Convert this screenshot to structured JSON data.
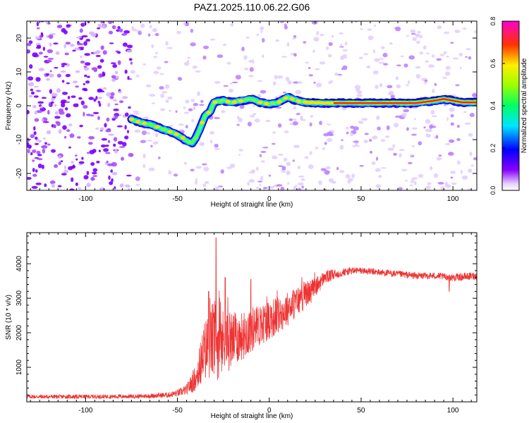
{
  "figure": {
    "title": "PAZ1.2025.110.06.22.G06"
  },
  "chart_data": [
    {
      "type": "heatmap",
      "title": "PAZ1.2025.110.06.22.G06",
      "xlabel": "Height of straight line (km)",
      "ylabel": "Frequency (Hz)",
      "xlim": [
        -132,
        113
      ],
      "ylim": [
        -25,
        25
      ],
      "xticks": [
        -100,
        -50,
        0,
        50,
        100
      ],
      "yticks": [
        -20,
        -10,
        0,
        10,
        20
      ],
      "colorbar": {
        "label": "Normalized spectral amplitude",
        "range": [
          0.0,
          0.8
        ],
        "ticks": [
          0.0,
          0.2,
          0.4,
          0.6,
          0.8
        ],
        "colormap": "rainbow (white-violet-blue-cyan-green-yellow-red-magenta)"
      },
      "ridge": {
        "description": "dominant frequency trace",
        "x": [
          -75,
          -70,
          -65,
          -60,
          -55,
          -50,
          -47,
          -45,
          -42,
          -40,
          -38,
          -35,
          -32,
          -30,
          -25,
          -20,
          -15,
          -10,
          -5,
          0,
          5,
          8,
          10,
          15,
          20,
          30,
          40,
          50,
          60,
          70,
          80,
          90,
          95,
          100,
          105,
          113
        ],
        "y": [
          -4,
          -5,
          -5.5,
          -6.5,
          -7.5,
          -8.5,
          -9.5,
          -10.5,
          -11,
          -9.5,
          -7,
          -3,
          -1.5,
          1,
          1.5,
          1,
          1.5,
          2,
          1,
          0.5,
          1,
          2,
          2.5,
          1.5,
          1,
          0.8,
          0.8,
          0.8,
          0.8,
          0.8,
          0.8,
          1.5,
          2,
          1.5,
          1,
          1
        ]
      },
      "noise_band": {
        "x_range": [
          -132,
          -75
        ],
        "amplitude": "high",
        "note": "dense violet speckle across all frequencies"
      },
      "grid": false
    },
    {
      "type": "line",
      "xlabel": "Height of straight line (km)",
      "ylabel": "SNR (10 * v/v)",
      "xlim": [
        -132,
        113
      ],
      "ylim": [
        0,
        4900
      ],
      "xticks": [
        -100,
        -50,
        0,
        50,
        100
      ],
      "yticks": [
        1000,
        2000,
        3000,
        4000
      ],
      "line_color": "#ee3333",
      "envelope": {
        "x": [
          -132,
          -100,
          -70,
          -55,
          -50,
          -45,
          -40,
          -35,
          -30,
          -25,
          -20,
          -15,
          -10,
          -5,
          0,
          5,
          10,
          15,
          20,
          25,
          30,
          40,
          45,
          50,
          60,
          70,
          80,
          90,
          100,
          113
        ],
        "mean": [
          150,
          150,
          160,
          200,
          250,
          350,
          700,
          1500,
          1800,
          1700,
          1800,
          1900,
          2100,
          2200,
          2400,
          2500,
          2700,
          2900,
          3100,
          3300,
          3600,
          3750,
          3800,
          3800,
          3750,
          3700,
          3650,
          3650,
          3600,
          3650
        ],
        "noise": [
          60,
          60,
          60,
          80,
          100,
          150,
          400,
          900,
          1200,
          1000,
          800,
          700,
          700,
          600,
          600,
          550,
          500,
          450,
          400,
          300,
          200,
          120,
          110,
          100,
          100,
          100,
          100,
          100,
          110,
          110
        ]
      },
      "peaks": [
        {
          "x": -29,
          "y": 4750
        },
        {
          "x": -33,
          "y": 3200
        },
        {
          "x": -24,
          "y": 3600
        },
        {
          "x": -10,
          "y": 3550
        },
        {
          "x": 98,
          "y": 3200
        }
      ],
      "grid": false
    }
  ]
}
